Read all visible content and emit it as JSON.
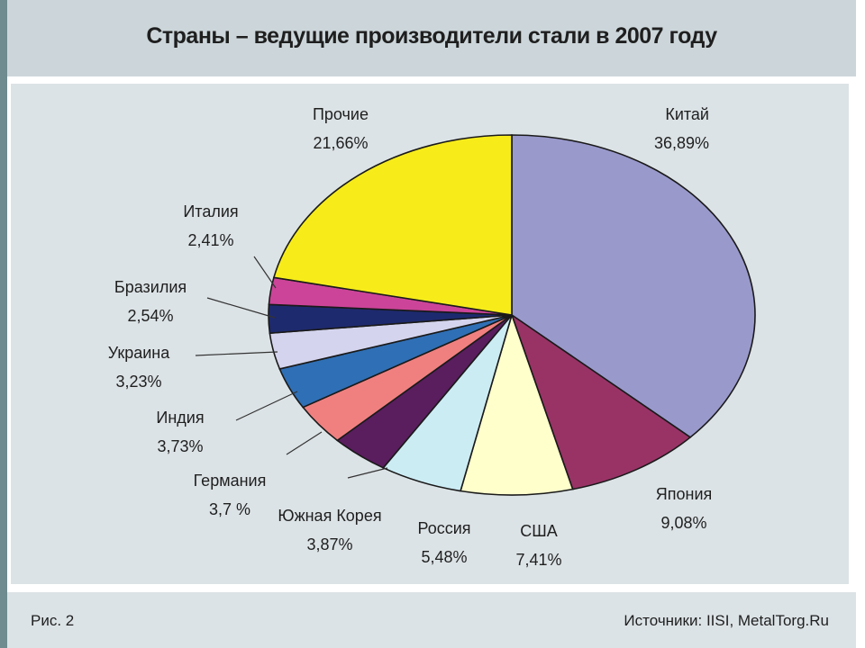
{
  "chart_data": {
    "type": "pie",
    "title": "Страны – ведущие производители стали в 2007 году",
    "slices": [
      {
        "label": "Китай",
        "value_text": "36,89%",
        "value": 36.89,
        "color": "#9999cc"
      },
      {
        "label": "Япония",
        "value_text": "9,08%",
        "value": 9.08,
        "color": "#993366"
      },
      {
        "label": "США",
        "value_text": "7,41%",
        "value": 7.41,
        "color": "#ffffcc"
      },
      {
        "label": "Россия",
        "value_text": "5,48%",
        "value": 5.48,
        "color": "#ccecf4"
      },
      {
        "label": "Южная Корея",
        "value_text": "3,87%",
        "value": 3.87,
        "color": "#5a1d5e"
      },
      {
        "label": "Германия",
        "value_text": "3,7 %",
        "value": 3.7,
        "color": "#f08080"
      },
      {
        "label": "Индия",
        "value_text": "3,73%",
        "value": 3.73,
        "color": "#2f6fb5"
      },
      {
        "label": "Украина",
        "value_text": "3,23%",
        "value": 3.23,
        "color": "#d4d4ee"
      },
      {
        "label": "Бразилия",
        "value_text": "2,54%",
        "value": 2.54,
        "color": "#1e2a6e"
      },
      {
        "label": "Италия",
        "value_text": "2,41%",
        "value": 2.41,
        "color": "#cc4499"
      },
      {
        "label": "Прочие",
        "value_text": "21,66%",
        "value": 21.66,
        "color": "#f7ec1a"
      }
    ],
    "legend": "none"
  },
  "footer": {
    "figure_caption": "Рис. 2",
    "source_note": "Источники: IISI, MetalTorg.Ru"
  }
}
